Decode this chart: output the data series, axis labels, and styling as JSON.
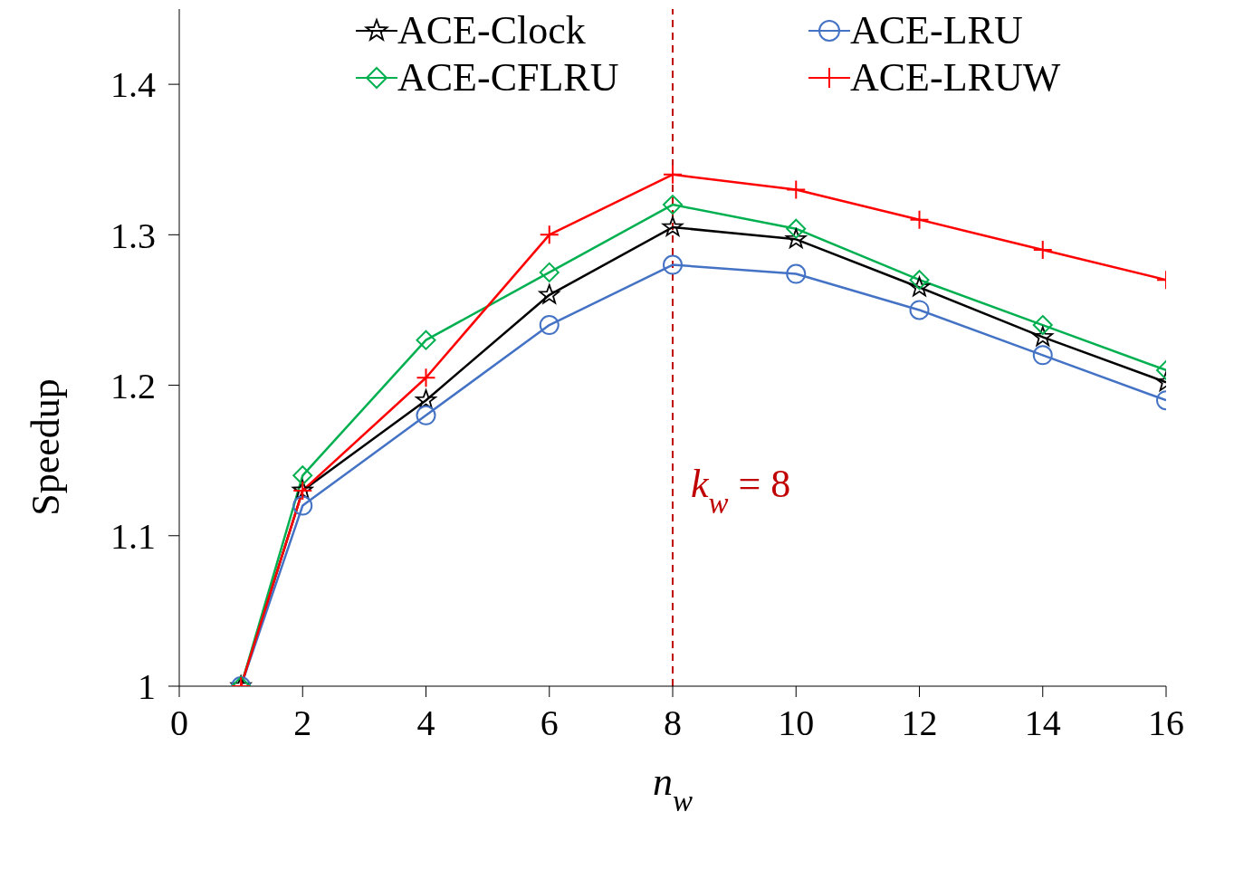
{
  "chart_data": {
    "type": "line",
    "xlabel": "n$_{w}$",
    "ylabel": "Speedup",
    "x": [
      1,
      2,
      4,
      6,
      8,
      10,
      12,
      14,
      16
    ],
    "series": [
      {
        "name": "ACE-Clock",
        "color": "#000000",
        "marker": "star",
        "values": [
          1.0,
          1.13,
          1.19,
          1.26,
          1.305,
          1.297,
          1.265,
          1.232,
          1.202
        ]
      },
      {
        "name": "ACE-LRU",
        "color": "#4472c4",
        "marker": "circle",
        "values": [
          1.0,
          1.12,
          1.18,
          1.24,
          1.28,
          1.274,
          1.25,
          1.22,
          1.19
        ]
      },
      {
        "name": "ACE-CFLRU",
        "color": "#00b050",
        "marker": "diamond",
        "values": [
          1.0,
          1.14,
          1.23,
          1.275,
          1.32,
          1.304,
          1.27,
          1.24,
          1.21
        ]
      },
      {
        "name": "ACE-LRUW",
        "color": "#ff0000",
        "marker": "cross",
        "values": [
          1.0,
          1.13,
          1.205,
          1.3,
          1.34,
          1.33,
          1.31,
          1.29,
          1.27
        ]
      }
    ],
    "xlim": [
      0,
      16
    ],
    "xticks": [
      0,
      2,
      4,
      6,
      8,
      10,
      12,
      14,
      16
    ],
    "ylim": [
      1,
      1.45
    ],
    "yticks": [
      1,
      1.1,
      1.2,
      1.3,
      1.4
    ],
    "ref_lines": [
      {
        "axis": "x",
        "value": 8,
        "label": "k$_{w}$ = 8",
        "color": "#c00000",
        "line_style": "dashed"
      }
    ],
    "grid": false,
    "legend": "top"
  }
}
